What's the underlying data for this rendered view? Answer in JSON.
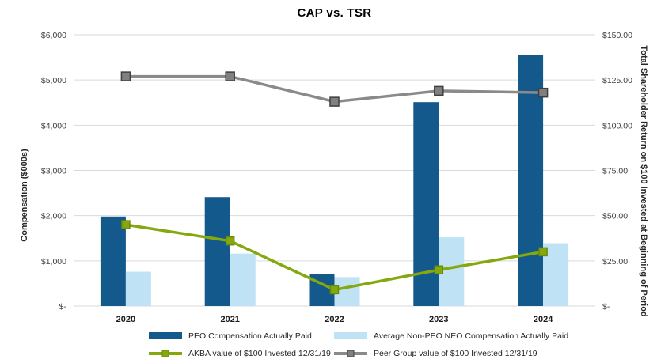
{
  "title": "CAP vs. TSR",
  "chart_data": {
    "type": "combo-bar-line",
    "title": "CAP vs. TSR",
    "categories": [
      "2020",
      "2021",
      "2022",
      "2023",
      "2024"
    ],
    "left_axis": {
      "label": "Compensation ($000s)",
      "min": 0,
      "max": 6000,
      "step": 1000,
      "tick_labels": [
        "$-",
        "$1,000",
        "$2,000",
        "$3,000",
        "$4,000",
        "$5,000",
        "$6,000"
      ]
    },
    "right_axis": {
      "label": "Total Shareholder Return on $100 Invested at Beginning of Period",
      "min": 0,
      "max": 150,
      "step": 25,
      "tick_labels": [
        "$-",
        "$25.00",
        "$50.00",
        "$75.00",
        "$100.00",
        "$125.00",
        "$150.00"
      ]
    },
    "grid": true,
    "legend_position": "bottom",
    "series": [
      {
        "key": "peo-cap",
        "name": "PEO Compensation Actually Paid",
        "type": "bar",
        "axis": "left",
        "color": "#14598C",
        "values": [
          1980,
          2410,
          700,
          4510,
          5550
        ]
      },
      {
        "key": "avg-neo-cap",
        "name": "Average Non-PEO NEO Compensation Actually Paid",
        "type": "bar",
        "axis": "left",
        "color": "#BFE2F4",
        "values": [
          760,
          1160,
          640,
          1520,
          1390
        ]
      },
      {
        "key": "akba-tsr",
        "name": "AKBA value of $100 Invested 12/31/19",
        "type": "line",
        "axis": "right",
        "color": "#84A80D",
        "marker_fill": "#84A80D",
        "marker_stroke": "#6C8A0A",
        "values": [
          45,
          36,
          9,
          20,
          30
        ]
      },
      {
        "key": "peer-tsr",
        "name": "Peer Group value of $100 Invested 12/31/19",
        "type": "line",
        "axis": "right",
        "color": "#8A8A8A",
        "marker_fill": "#808080",
        "marker_stroke": "#404040",
        "values": [
          127,
          127,
          113,
          119,
          118
        ]
      }
    ],
    "colors": {
      "gridline": "#D9D9D9",
      "tick_text": "#404040",
      "title_text": "#000000"
    }
  }
}
